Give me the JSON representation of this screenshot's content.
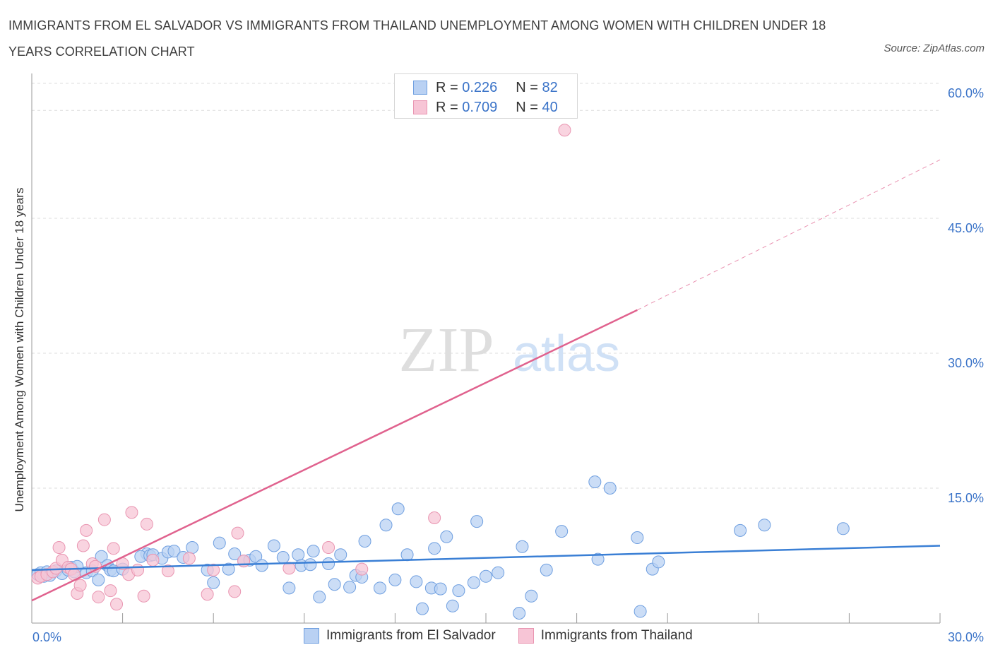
{
  "header": {
    "title": "IMMIGRANTS FROM EL SALVADOR VS IMMIGRANTS FROM THAILAND UNEMPLOYMENT AMONG WOMEN WITH CHILDREN UNDER 18 YEARS CORRELATION CHART",
    "source": "Source: ZipAtlas.com"
  },
  "watermark": {
    "zip": "ZIP",
    "atlas": "atlas"
  },
  "legend": {
    "r_label": "R =",
    "n_label": "N =",
    "rows": [
      {
        "r": "0.226",
        "n": "82"
      },
      {
        "r": "0.709",
        "n": "40"
      }
    ]
  },
  "colors": {
    "blue_fill": "#b9d1f3",
    "blue_stroke": "#6f9fe0",
    "blue_line": "#3a7fd5",
    "pink_fill": "#f7c5d6",
    "pink_stroke": "#e995b1",
    "pink_line": "#e0628e",
    "axis_label": "#3a73c8",
    "grid": "#dcdcdc"
  },
  "chart_data": {
    "type": "scatter",
    "title": "IMMIGRANTS FROM EL SALVADOR VS IMMIGRANTS FROM THAILAND UNEMPLOYMENT AMONG WOMEN WITH CHILDREN UNDER 18 YEARS CORRELATION CHART",
    "xlabel": "",
    "ylabel": "Unemployment Among Women with Children Under 18 years",
    "xlim": [
      0,
      30
    ],
    "ylim": [
      0,
      60
    ],
    "x_tick_labels": [
      "0.0%",
      "30.0%"
    ],
    "y_tick_labels": [
      "15.0%",
      "30.0%",
      "45.0%",
      "60.0%"
    ],
    "y_ticks": [
      15,
      30,
      45,
      60
    ],
    "grid": true,
    "legend_position": "bottom",
    "series": [
      {
        "name": "Immigrants from El Salvador",
        "points": [
          [
            0.2,
            5.4
          ],
          [
            0.3,
            5.6
          ],
          [
            0.4,
            5.2
          ],
          [
            0.5,
            5.7
          ],
          [
            0.6,
            5.3
          ],
          [
            0.8,
            5.8
          ],
          [
            1.0,
            5.5
          ],
          [
            1.2,
            5.9
          ],
          [
            1.3,
            6.2
          ],
          [
            1.4,
            5.7
          ],
          [
            1.5,
            6.3
          ],
          [
            1.8,
            5.6
          ],
          [
            2.0,
            5.8
          ],
          [
            2.2,
            4.8
          ],
          [
            2.3,
            7.4
          ],
          [
            2.5,
            6.4
          ],
          [
            2.6,
            5.9
          ],
          [
            2.7,
            5.8
          ],
          [
            3.0,
            6.0
          ],
          [
            3.8,
            7.7
          ],
          [
            3.6,
            7.4
          ],
          [
            3.9,
            7.5
          ],
          [
            4.0,
            7.6
          ],
          [
            4.3,
            7.2
          ],
          [
            4.5,
            7.9
          ],
          [
            4.7,
            8.0
          ],
          [
            5.0,
            7.3
          ],
          [
            5.3,
            8.4
          ],
          [
            5.8,
            5.9
          ],
          [
            6.0,
            4.5
          ],
          [
            6.2,
            8.9
          ],
          [
            6.5,
            6.0
          ],
          [
            6.7,
            7.7
          ],
          [
            7.0,
            6.9
          ],
          [
            7.2,
            7.0
          ],
          [
            7.4,
            7.4
          ],
          [
            7.6,
            6.4
          ],
          [
            8.0,
            8.6
          ],
          [
            8.3,
            7.3
          ],
          [
            8.5,
            3.9
          ],
          [
            8.8,
            7.6
          ],
          [
            8.9,
            6.4
          ],
          [
            9.2,
            6.5
          ],
          [
            9.3,
            8.0
          ],
          [
            9.5,
            2.9
          ],
          [
            9.8,
            6.6
          ],
          [
            10.0,
            4.3
          ],
          [
            10.2,
            7.6
          ],
          [
            10.5,
            4.0
          ],
          [
            10.7,
            5.3
          ],
          [
            10.9,
            5.1
          ],
          [
            11.0,
            9.1
          ],
          [
            11.5,
            3.9
          ],
          [
            11.7,
            10.9
          ],
          [
            12.0,
            4.8
          ],
          [
            12.1,
            12.7
          ],
          [
            12.4,
            7.6
          ],
          [
            12.7,
            4.6
          ],
          [
            12.9,
            1.6
          ],
          [
            13.2,
            3.9
          ],
          [
            13.3,
            8.3
          ],
          [
            13.5,
            3.8
          ],
          [
            13.7,
            9.6
          ],
          [
            13.9,
            1.9
          ],
          [
            14.1,
            3.6
          ],
          [
            14.6,
            4.5
          ],
          [
            14.7,
            11.3
          ],
          [
            15.0,
            5.2
          ],
          [
            15.4,
            5.6
          ],
          [
            16.1,
            1.1
          ],
          [
            16.2,
            8.5
          ],
          [
            16.5,
            3.0
          ],
          [
            17.0,
            5.9
          ],
          [
            17.5,
            10.2
          ],
          [
            18.6,
            15.7
          ],
          [
            19.1,
            15.0
          ],
          [
            18.7,
            7.1
          ],
          [
            20.0,
            9.5
          ],
          [
            20.1,
            1.3
          ],
          [
            20.5,
            6.0
          ],
          [
            20.7,
            6.8
          ],
          [
            23.4,
            10.3
          ],
          [
            24.2,
            10.9
          ],
          [
            26.8,
            10.5
          ]
        ]
      },
      {
        "name": "Immigrants from Thailand",
        "points": [
          [
            0.2,
            5.0
          ],
          [
            0.3,
            5.2
          ],
          [
            0.5,
            5.4
          ],
          [
            0.7,
            5.7
          ],
          [
            0.8,
            6.1
          ],
          [
            0.9,
            8.4
          ],
          [
            1.0,
            7.0
          ],
          [
            1.2,
            6.2
          ],
          [
            1.3,
            6.0
          ],
          [
            1.4,
            5.4
          ],
          [
            1.5,
            3.3
          ],
          [
            1.6,
            4.2
          ],
          [
            1.7,
            8.6
          ],
          [
            1.8,
            10.3
          ],
          [
            2.0,
            6.6
          ],
          [
            2.1,
            6.3
          ],
          [
            2.2,
            2.9
          ],
          [
            2.4,
            11.5
          ],
          [
            2.6,
            3.6
          ],
          [
            2.7,
            8.3
          ],
          [
            2.8,
            2.1
          ],
          [
            3.0,
            6.6
          ],
          [
            3.2,
            5.4
          ],
          [
            3.3,
            12.3
          ],
          [
            3.5,
            5.9
          ],
          [
            3.7,
            3.0
          ],
          [
            3.8,
            11.0
          ],
          [
            4.0,
            7.0
          ],
          [
            4.5,
            5.8
          ],
          [
            5.2,
            7.2
          ],
          [
            5.8,
            3.2
          ],
          [
            6.0,
            5.9
          ],
          [
            6.7,
            3.5
          ],
          [
            6.8,
            10.0
          ],
          [
            7.0,
            6.9
          ],
          [
            8.5,
            6.1
          ],
          [
            9.8,
            8.4
          ],
          [
            10.9,
            6.0
          ],
          [
            13.3,
            11.7
          ],
          [
            17.6,
            54.8
          ]
        ]
      }
    ],
    "trendlines": [
      {
        "series": "Immigrants from El Salvador",
        "x": [
          0,
          30
        ],
        "y": [
          5.9,
          8.6
        ]
      },
      {
        "series": "Immigrants from Thailand",
        "x": [
          0,
          20
        ],
        "y": [
          2.5,
          34.8
        ],
        "extension": {
          "x": [
            20,
            30
          ],
          "y": [
            34.8,
            51.5
          ]
        }
      }
    ]
  }
}
